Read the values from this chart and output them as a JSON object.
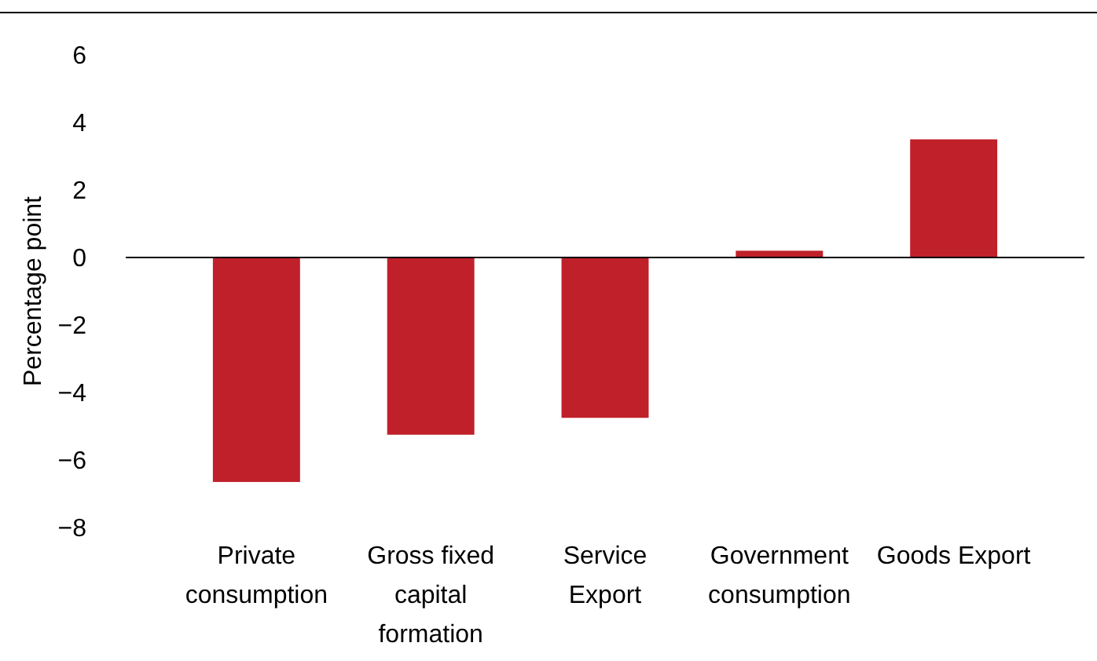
{
  "chart_data": {
    "type": "bar",
    "ylabel": "Percentage point",
    "categories": [
      "Private consumption",
      "Gross fixed capital formation",
      "Service Export",
      "Government consumption",
      "Goods Export"
    ],
    "values": [
      -6.65,
      -5.25,
      -4.75,
      0.2,
      3.5
    ],
    "color": "#c0202a",
    "ylim": [
      -8,
      6
    ],
    "yticks": [
      {
        "value": -8,
        "label": "−8"
      },
      {
        "value": -6,
        "label": "−6"
      },
      {
        "value": -4,
        "label": "−4"
      },
      {
        "value": -2,
        "label": "−2"
      },
      0,
      2,
      4,
      6
    ]
  }
}
